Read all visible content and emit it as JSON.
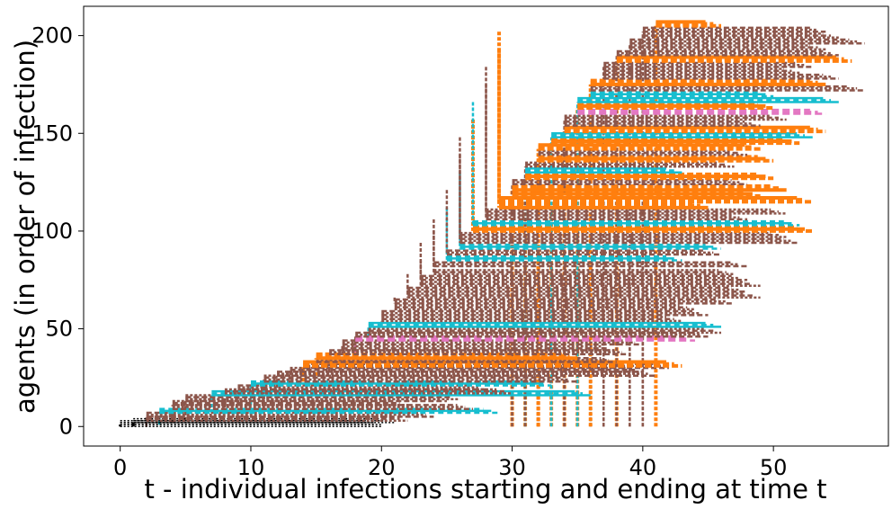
{
  "chart_data": {
    "type": "line",
    "title": "",
    "xlabel": "t - individual infections starting and ending at time t",
    "ylabel": "agents (in order of infection)",
    "xlim": [
      -2.8,
      58.8
    ],
    "ylim": [
      -10,
      215
    ],
    "x_ticks": [
      0,
      10,
      20,
      30,
      40,
      50
    ],
    "y_ticks": [
      0,
      50,
      100,
      150,
      200
    ],
    "grid": false,
    "legend": "none",
    "colors": {
      "initial": "#000000",
      "brown": "#8c564b",
      "orange": "#ff7f0e",
      "cyan": "#17becf",
      "pink": "#e377c2"
    },
    "segments_note": "each agent i: horizontal line at y=i from infection start t0 to end t1; vertical connector from infector's level at t0",
    "agents": [
      {
        "y": 0,
        "t0": 0,
        "t1": 20,
        "c": "initial",
        "p": 0
      },
      {
        "y": 1,
        "t0": 0,
        "t1": 20,
        "c": "initial",
        "p": 0
      },
      {
        "y": 2,
        "t0": 1,
        "t1": 21,
        "c": "initial",
        "p": 0
      },
      {
        "y": 3,
        "t0": 2,
        "t1": 22,
        "c": "brown",
        "p": 0
      },
      {
        "y": 5,
        "t0": 2,
        "t1": 24,
        "c": "brown",
        "p": 0
      },
      {
        "y": 7,
        "t0": 3,
        "t1": 29,
        "c": "cyan",
        "p": 1
      },
      {
        "y": 9,
        "t0": 4,
        "t1": 27,
        "c": "brown",
        "p": 2
      },
      {
        "y": 11,
        "t0": 4,
        "t1": 22,
        "c": "brown",
        "p": 2
      },
      {
        "y": 13,
        "t0": 5,
        "t1": 25,
        "c": "brown",
        "p": 3
      },
      {
        "y": 14,
        "t0": 5,
        "t1": 26,
        "c": "brown",
        "p": 3
      },
      {
        "y": 16,
        "t0": 7,
        "t1": 36,
        "c": "cyan",
        "p": 5
      },
      {
        "y": 17,
        "t0": 8,
        "t1": 30,
        "c": "brown",
        "p": 5
      },
      {
        "y": 19,
        "t0": 9,
        "t1": 28,
        "c": "brown",
        "p": 7
      },
      {
        "y": 21,
        "t0": 10,
        "t1": 33,
        "c": "cyan",
        "p": 7
      },
      {
        "y": 23,
        "t0": 11,
        "t1": 35,
        "c": "brown",
        "p": 9
      },
      {
        "y": 24,
        "t0": 11,
        "t1": 33,
        "c": "brown",
        "p": 9
      },
      {
        "y": 26,
        "t0": 12,
        "t1": 41,
        "c": "brown",
        "p": 11
      },
      {
        "y": 28,
        "t0": 13,
        "t1": 40,
        "c": "brown",
        "p": 13
      },
      {
        "y": 30,
        "t0": 14,
        "t1": 42,
        "c": "brown",
        "p": 14
      },
      {
        "y": 31,
        "t0": 14,
        "t1": 43,
        "c": "orange",
        "p": 14
      },
      {
        "y": 33,
        "t0": 15,
        "t1": 38,
        "c": "brown",
        "p": 16
      },
      {
        "y": 35,
        "t0": 15,
        "t1": 35,
        "c": "orange",
        "p": 16
      },
      {
        "y": 37,
        "t0": 16,
        "t1": 39,
        "c": "brown",
        "p": 17
      },
      {
        "y": 39,
        "t0": 17,
        "t1": 38,
        "c": "brown",
        "p": 19
      },
      {
        "y": 42,
        "t0": 17,
        "t1": 40,
        "c": "brown",
        "p": 19
      },
      {
        "y": 44,
        "t0": 18,
        "t1": 44,
        "c": "pink",
        "p": 21
      },
      {
        "y": 46,
        "t0": 18,
        "t1": 45,
        "c": "brown",
        "p": 23
      },
      {
        "y": 48,
        "t0": 19,
        "t1": 46,
        "c": "brown",
        "p": 24
      },
      {
        "y": 51,
        "t0": 19,
        "t1": 46,
        "c": "cyan",
        "p": 26
      },
      {
        "y": 54,
        "t0": 20,
        "t1": 43,
        "c": "brown",
        "p": 28
      },
      {
        "y": 57,
        "t0": 20,
        "t1": 45,
        "c": "brown",
        "p": 30
      },
      {
        "y": 60,
        "t0": 21,
        "t1": 44,
        "c": "brown",
        "p": 31
      },
      {
        "y": 63,
        "t0": 21,
        "t1": 47,
        "c": "brown",
        "p": 33
      },
      {
        "y": 66,
        "t0": 22,
        "t1": 49,
        "c": "brown",
        "p": 35
      },
      {
        "y": 69,
        "t0": 22,
        "t1": 48,
        "c": "brown",
        "p": 37
      },
      {
        "y": 72,
        "t0": 23,
        "t1": 49,
        "c": "brown",
        "p": 39
      },
      {
        "y": 75,
        "t0": 23,
        "t1": 48,
        "c": "brown",
        "p": 42
      },
      {
        "y": 78,
        "t0": 24,
        "t1": 47,
        "c": "brown",
        "p": 44
      },
      {
        "y": 82,
        "t0": 24,
        "t1": 48,
        "c": "brown",
        "p": 46
      },
      {
        "y": 85,
        "t0": 25,
        "t1": 43,
        "c": "cyan",
        "p": 48
      },
      {
        "y": 88,
        "t0": 25,
        "t1": 46,
        "c": "brown",
        "p": 51
      },
      {
        "y": 91,
        "t0": 26,
        "t1": 46,
        "c": "cyan",
        "p": 54
      },
      {
        "y": 94,
        "t0": 26,
        "t1": 52,
        "c": "brown",
        "p": 57
      },
      {
        "y": 97,
        "t0": 26,
        "t1": 51,
        "c": "brown",
        "p": 60
      },
      {
        "y": 100,
        "t0": 27,
        "t1": 53,
        "c": "orange",
        "p": 63
      },
      {
        "y": 103,
        "t0": 27,
        "t1": 52,
        "c": "cyan",
        "p": 66
      },
      {
        "y": 106,
        "t0": 28,
        "t1": 48,
        "c": "brown",
        "p": 69
      },
      {
        "y": 109,
        "t0": 28,
        "t1": 51,
        "c": "brown",
        "p": 72
      },
      {
        "y": 112,
        "t0": 29,
        "t1": 45,
        "c": "orange",
        "p": 75
      },
      {
        "y": 115,
        "t0": 29,
        "t1": 53,
        "c": "orange",
        "p": 78
      },
      {
        "y": 118,
        "t0": 30,
        "t1": 49,
        "c": "orange",
        "p": 82
      },
      {
        "y": 121,
        "t0": 30,
        "t1": 51,
        "c": "orange",
        "p": 85
      },
      {
        "y": 124,
        "t0": 30,
        "t1": 48,
        "c": "brown",
        "p": 88
      },
      {
        "y": 127,
        "t0": 31,
        "t1": 50,
        "c": "orange",
        "p": 91
      },
      {
        "y": 130,
        "t0": 31,
        "t1": 43,
        "c": "cyan",
        "p": 94
      },
      {
        "y": 133,
        "t0": 31,
        "t1": 47,
        "c": "brown",
        "p": 97
      },
      {
        "y": 136,
        "t0": 32,
        "t1": 50,
        "c": "orange",
        "p": 100
      },
      {
        "y": 139,
        "t0": 32,
        "t1": 48,
        "c": "brown",
        "p": 103
      },
      {
        "y": 142,
        "t0": 32,
        "t1": 49,
        "c": "orange",
        "p": 106
      },
      {
        "y": 145,
        "t0": 33,
        "t1": 52,
        "c": "orange",
        "p": 109
      },
      {
        "y": 148,
        "t0": 33,
        "t1": 53,
        "c": "cyan",
        "p": 112
      },
      {
        "y": 151,
        "t0": 34,
        "t1": 54,
        "c": "orange",
        "p": 115
      },
      {
        "y": 154,
        "t0": 34,
        "t1": 49,
        "c": "brown",
        "p": 118
      },
      {
        "y": 157,
        "t0": 34,
        "t1": 51,
        "c": "brown",
        "p": 121
      },
      {
        "y": 160,
        "t0": 35,
        "t1": 54,
        "c": "pink",
        "p": 124
      },
      {
        "y": 163,
        "t0": 35,
        "t1": 50,
        "c": "orange",
        "p": 127
      },
      {
        "y": 166,
        "t0": 35,
        "t1": 55,
        "c": "cyan",
        "p": 130
      },
      {
        "y": 169,
        "t0": 36,
        "t1": 50,
        "c": "cyan",
        "p": 133
      },
      {
        "y": 172,
        "t0": 36,
        "t1": 57,
        "c": "brown",
        "p": 136
      },
      {
        "y": 175,
        "t0": 36,
        "t1": 54,
        "c": "orange",
        "p": 139
      },
      {
        "y": 178,
        "t0": 37,
        "t1": 55,
        "c": "brown",
        "p": 142
      },
      {
        "y": 181,
        "t0": 37,
        "t1": 52,
        "c": "brown",
        "p": 145
      },
      {
        "y": 184,
        "t0": 37,
        "t1": 53,
        "c": "brown",
        "p": 148
      },
      {
        "y": 187,
        "t0": 38,
        "t1": 56,
        "c": "orange",
        "p": 151
      },
      {
        "y": 190,
        "t0": 38,
        "t1": 55,
        "c": "brown",
        "p": 154
      },
      {
        "y": 193,
        "t0": 39,
        "t1": 54,
        "c": "brown",
        "p": 157
      },
      {
        "y": 196,
        "t0": 39,
        "t1": 57,
        "c": "brown",
        "p": 160
      },
      {
        "y": 199,
        "t0": 40,
        "t1": 55,
        "c": "brown",
        "p": 163
      },
      {
        "y": 202,
        "t0": 40,
        "t1": 54,
        "c": "brown",
        "p": 166
      },
      {
        "y": 205,
        "t0": 41,
        "t1": 46,
        "c": "orange",
        "p": 169
      }
    ]
  }
}
